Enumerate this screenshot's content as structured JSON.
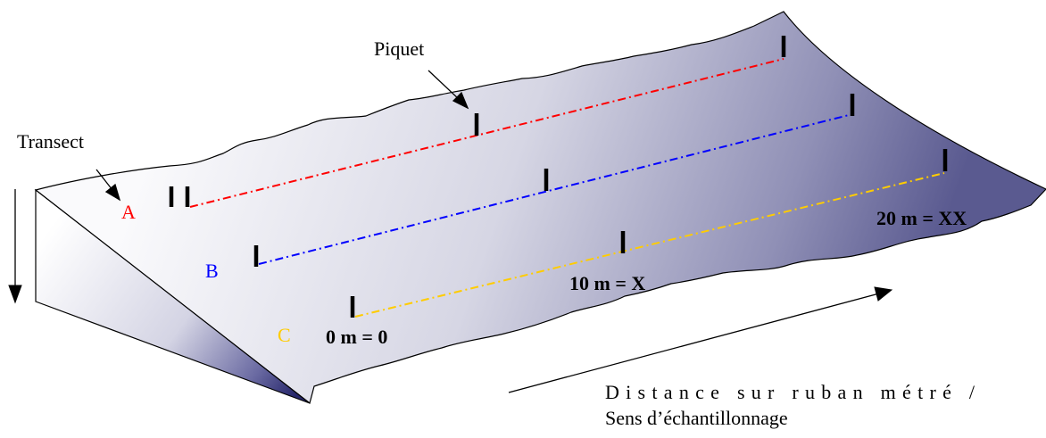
{
  "labels": {
    "piquet": "Piquet",
    "transect": "Transect",
    "distance_line1": "Distance sur ruban métré /",
    "distance_line2": "Sens d’échantillonnage"
  },
  "transects": [
    {
      "id": "A",
      "color": "#ff0000"
    },
    {
      "id": "B",
      "color": "#0000ff"
    },
    {
      "id": "C",
      "color": "#ffcc00"
    }
  ],
  "distance_marks": {
    "zero": "0 m = 0",
    "ten": "10 m = X",
    "twenty": "20 m = XX"
  },
  "colors": {
    "slope_light": "#f4f4f8",
    "slope_dark": "#2e2e70",
    "stake": "#000000"
  }
}
